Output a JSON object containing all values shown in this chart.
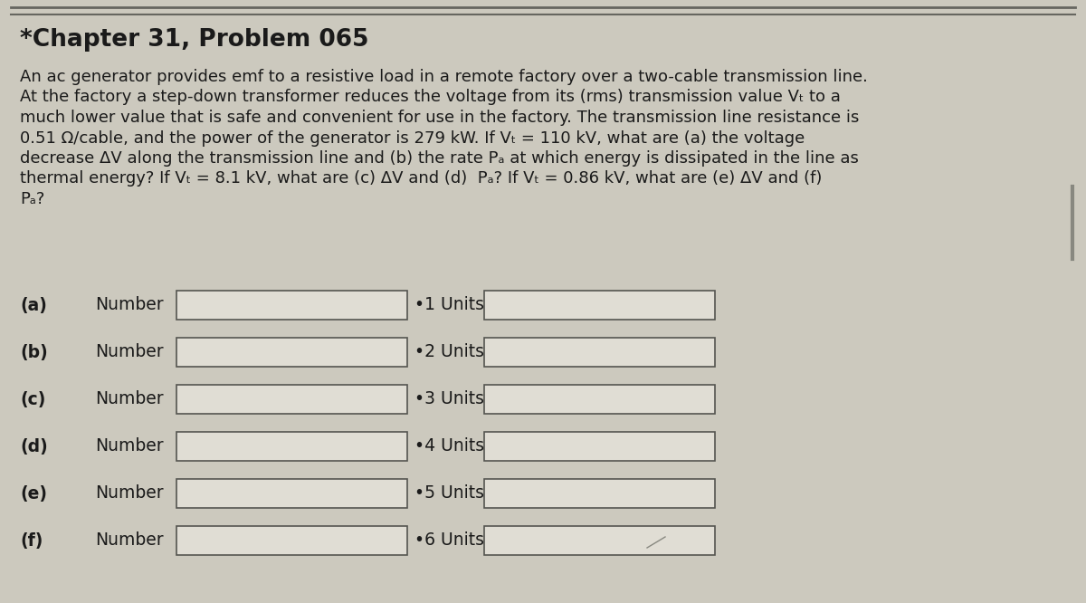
{
  "title": "*Chapter 31, Problem 065",
  "title_fontsize": 19,
  "body_lines": [
    "An ac generator provides emf to a resistive load in a remote factory over a two-cable transmission line.",
    "At the factory a step-down transformer reduces the voltage from its (rms) transmission value Vₜ to a",
    "much lower value that is safe and convenient for use in the factory. The transmission line resistance is",
    "0.51 Ω/cable, and the power of the generator is 279 kW. If Vₜ = 110 kV, what are (a) the voltage",
    "decrease ΔV along the transmission line and (b) the rate Pₐ at which energy is dissipated in the line as",
    "thermal energy? If Vₜ = 8.1 kV, what are (c) ΔV and (d)  Pₐ? If Vₜ = 0.86 kV, what are (e) ΔV and (f)",
    "Pₐ?"
  ],
  "body_fontsize": 13.0,
  "rows": [
    {
      "label": "(a)",
      "unit_label": "•1 Units"
    },
    {
      "label": "(b)",
      "unit_label": "•2 Units"
    },
    {
      "label": "(c)",
      "unit_label": "•3 Units"
    },
    {
      "label": "(d)",
      "unit_label": "•4 Units"
    },
    {
      "label": "(e)",
      "unit_label": "•5 Units"
    },
    {
      "label": "(f)",
      "unit_label": "•6 Units"
    }
  ],
  "bg_color": "#ccc9be",
  "box_bg_color": "#e8e5dc",
  "box_fill": "#e0ddd4",
  "box_edge": "#555550",
  "text_color": "#1a1a1a",
  "line_color": "#666660",
  "fig_width": 12.0,
  "fig_height": 6.66
}
